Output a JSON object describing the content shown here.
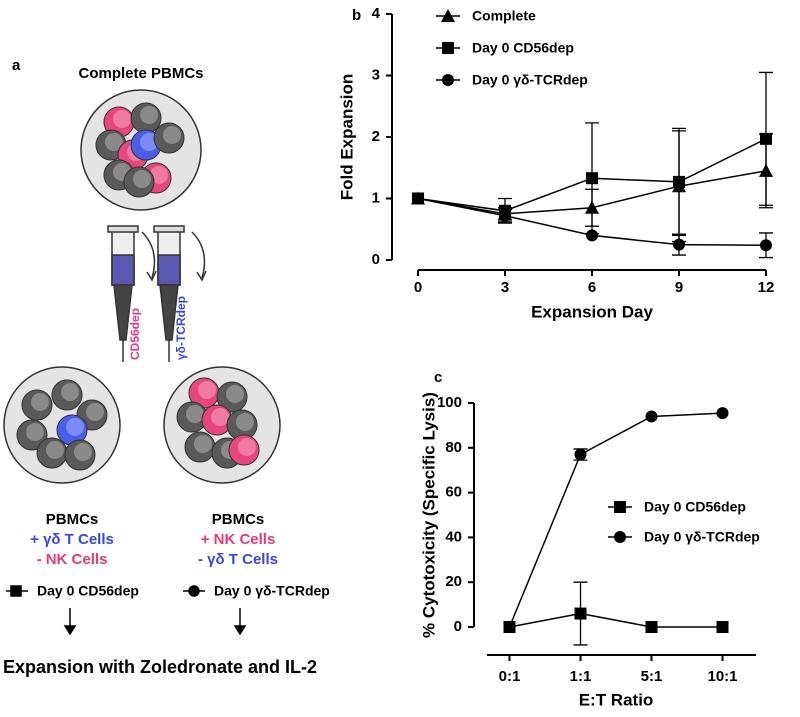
{
  "panel_a": {
    "label": "a",
    "title": "Complete PBMCs",
    "syringe_left": "CD56dep",
    "syringe_right": "γδ-TCRdep",
    "left": {
      "title": "PBMCs",
      "plus": "+ γδ T Cells",
      "minus": "- NK Cells"
    },
    "right": {
      "title": "PBMCs",
      "plus": "+ NK Cells",
      "minus": "- γδ T Cells"
    },
    "legend": [
      "Day 0 CD56dep",
      "Day 0 γδ-TCRdep"
    ],
    "footer": "Expansion with Zoledronate and IL-2"
  },
  "chart_data": [
    {
      "type": "line",
      "panel_label": "b",
      "x_label": "Expansion Day",
      "y_label": "Fold  Expansion",
      "x": [
        0,
        3,
        6,
        9,
        12
      ],
      "xlim": [
        0,
        12
      ],
      "xticks": [
        0,
        3,
        6,
        9,
        12
      ],
      "ylim": [
        0,
        4
      ],
      "yticks": [
        0,
        1,
        2,
        3,
        4
      ],
      "legend": "upper left",
      "series": [
        {
          "name": "Complete",
          "color": "#000000",
          "marker": "triangle",
          "values": [
            1,
            0.75,
            0.85,
            1.2,
            1.45
          ],
          "errors": [
            null,
            0.1,
            0.3,
            0.9,
            0.6
          ]
        },
        {
          "name": "Day 0 CD56dep",
          "color": "#000000",
          "marker": "square",
          "values": [
            1,
            0.8,
            1.33,
            1.27,
            1.97
          ],
          "errors": [
            null,
            0.2,
            0.9,
            0.87,
            1.08
          ]
        },
        {
          "name": "Day 0 γδ-TCRdep",
          "color": "#000000",
          "marker": "circle",
          "values": [
            1,
            0.72,
            0.4,
            0.25,
            0.24
          ],
          "errors": [
            null,
            0.1,
            null,
            0.17,
            0.2
          ]
        }
      ]
    },
    {
      "type": "line",
      "panel_label": "c",
      "x_label": "E:T Ratio",
      "y_label": "% Cytotoxicity (Specific Lysis)",
      "categories": [
        "0:1",
        "1:1",
        "5:1",
        "10:1"
      ],
      "ylim": [
        0,
        100
      ],
      "yticks": [
        0,
        20,
        40,
        60,
        80,
        100
      ],
      "legend": "center right",
      "series": [
        {
          "name": "Day 0 CD56dep",
          "color": "#000000",
          "marker": "square",
          "values": [
            0,
            6,
            0,
            0
          ],
          "errors": [
            null,
            14,
            null,
            null
          ]
        },
        {
          "name": "Day 0 γδ-TCRdep",
          "color": "#000000",
          "marker": "circle",
          "values": [
            0,
            77,
            94,
            95.5
          ],
          "errors": [
            null,
            2.5,
            null,
            null
          ]
        }
      ]
    }
  ]
}
